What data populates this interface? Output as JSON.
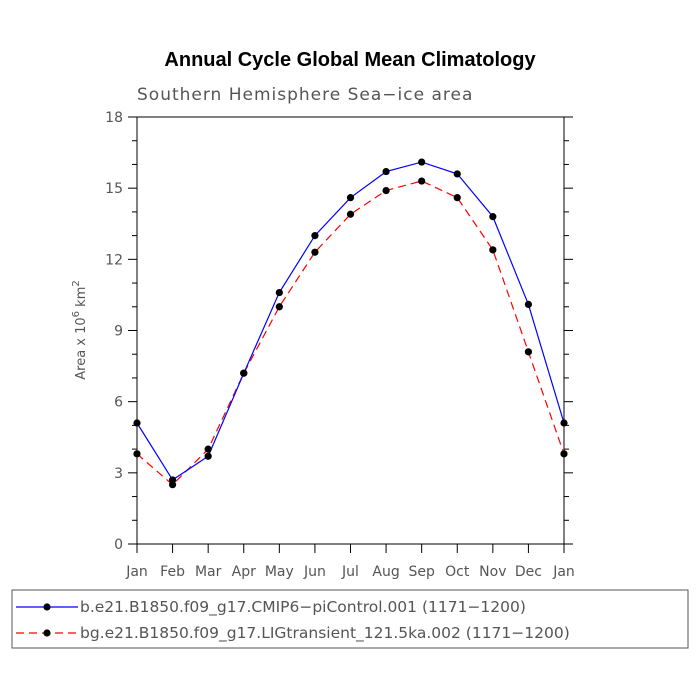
{
  "chart_data": {
    "type": "line",
    "title": "Annual Cycle Global Mean Climatology",
    "subtitle": "Southern Hemisphere Sea−ice area",
    "ylabel_base": "Area x 10",
    "ylabel_exp": "6",
    "ylabel_unit": " km",
    "ylabel_unit_exp": "2",
    "xlabel": "",
    "ylim": [
      0,
      18
    ],
    "yticks": [
      "0",
      "3",
      "6",
      "9",
      "12",
      "15",
      "18"
    ],
    "categories": [
      "Jan",
      "Feb",
      "Mar",
      "Apr",
      "May",
      "Jun",
      "Jul",
      "Aug",
      "Sep",
      "Oct",
      "Nov",
      "Dec",
      "Jan"
    ],
    "series": [
      {
        "name": "b.e21.B1850.f09_g17.CMIP6−piControl.001 (1171−1200)",
        "color": "#0000ff",
        "dash": "solid",
        "values": [
          5.1,
          2.7,
          3.7,
          7.2,
          10.6,
          13.0,
          14.6,
          15.7,
          16.1,
          15.6,
          13.8,
          10.1,
          5.1
        ]
      },
      {
        "name": "bg.e21.B1850.f09_g17.LIGtransient_121.5ka.002 (1171−1200)",
        "color": "#ff0000",
        "dash": "dashed",
        "values": [
          3.8,
          2.5,
          4.0,
          7.2,
          10.0,
          12.3,
          13.9,
          14.9,
          15.3,
          14.6,
          12.4,
          8.1,
          3.8
        ]
      }
    ]
  }
}
